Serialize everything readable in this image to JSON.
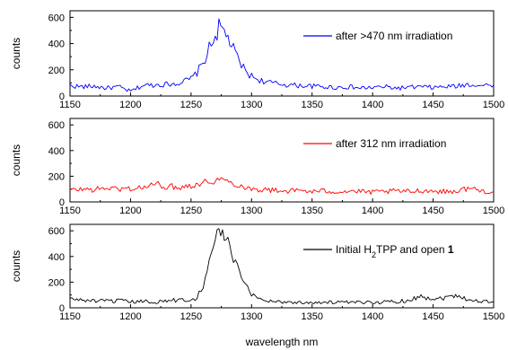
{
  "chart_data": [
    {
      "type": "line",
      "ylabel": "counts",
      "xlim": [
        1150,
        1500
      ],
      "ylim": [
        0,
        650
      ],
      "x_ticks": [
        1150,
        1200,
        1250,
        1300,
        1350,
        1400,
        1450,
        1500
      ],
      "y_ticks": [
        0,
        200,
        400,
        600
      ],
      "legend_placement": "top-right",
      "series": [
        {
          "name": "after >470 nm irradiation",
          "color": "#0000ff",
          "x": [
            1150,
            1160,
            1170,
            1180,
            1190,
            1200,
            1210,
            1220,
            1230,
            1240,
            1250,
            1255,
            1260,
            1265,
            1270,
            1273,
            1276,
            1279,
            1282,
            1285,
            1290,
            1295,
            1300,
            1305,
            1310,
            1320,
            1330,
            1340,
            1350,
            1360,
            1370,
            1380,
            1390,
            1400,
            1410,
            1420,
            1430,
            1440,
            1450,
            1460,
            1470,
            1480,
            1490,
            1500
          ],
          "y": [
            80,
            70,
            75,
            60,
            70,
            35,
            80,
            85,
            90,
            100,
            130,
            180,
            250,
            360,
            460,
            520,
            500,
            470,
            420,
            350,
            260,
            190,
            150,
            130,
            110,
            95,
            85,
            80,
            75,
            70,
            65,
            70,
            60,
            65,
            70,
            60,
            65,
            70,
            65,
            70,
            75,
            90,
            80,
            85
          ]
        }
      ]
    },
    {
      "type": "line",
      "ylabel": "counts",
      "xlim": [
        1150,
        1500
      ],
      "ylim": [
        0,
        650
      ],
      "x_ticks": [
        1150,
        1200,
        1250,
        1300,
        1350,
        1400,
        1450,
        1500
      ],
      "y_ticks": [
        0,
        200,
        400,
        600
      ],
      "legend_placement": "top-right",
      "series": [
        {
          "name": "after 312 nm irradiation",
          "color": "#ff0000",
          "x": [
            1150,
            1160,
            1170,
            1180,
            1190,
            1200,
            1210,
            1220,
            1230,
            1240,
            1250,
            1260,
            1270,
            1275,
            1280,
            1290,
            1300,
            1310,
            1320,
            1330,
            1340,
            1350,
            1360,
            1370,
            1380,
            1390,
            1400,
            1410,
            1420,
            1430,
            1440,
            1450,
            1460,
            1470,
            1480,
            1490,
            1500
          ],
          "y": [
            90,
            100,
            95,
            110,
            100,
            105,
            110,
            140,
            120,
            115,
            130,
            150,
            170,
            175,
            160,
            130,
            100,
            95,
            90,
            85,
            90,
            80,
            85,
            80,
            85,
            80,
            75,
            80,
            85,
            80,
            90,
            85,
            80,
            85,
            110,
            85,
            80
          ]
        }
      ]
    },
    {
      "type": "line",
      "ylabel": "counts",
      "xlabel": "wavelength nm",
      "xlim": [
        1150,
        1500
      ],
      "ylim": [
        0,
        650
      ],
      "x_ticks": [
        1150,
        1200,
        1250,
        1300,
        1350,
        1400,
        1450,
        1500
      ],
      "y_ticks": [
        0,
        200,
        400,
        600
      ],
      "legend_placement": "top-right",
      "series": [
        {
          "name": "Initial H2TPP and open 1",
          "color": "#000000",
          "x": [
            1150,
            1160,
            1170,
            1180,
            1190,
            1200,
            1210,
            1220,
            1230,
            1240,
            1250,
            1255,
            1260,
            1265,
            1270,
            1273,
            1276,
            1279,
            1282,
            1285,
            1290,
            1295,
            1300,
            1305,
            1310,
            1320,
            1330,
            1340,
            1350,
            1360,
            1370,
            1380,
            1390,
            1400,
            1410,
            1420,
            1430,
            1440,
            1450,
            1460,
            1470,
            1480,
            1490,
            1500
          ],
          "y": [
            70,
            60,
            55,
            50,
            55,
            45,
            50,
            45,
            55,
            60,
            65,
            80,
            180,
            350,
            520,
            600,
            590,
            540,
            470,
            380,
            260,
            170,
            110,
            80,
            60,
            50,
            45,
            40,
            45,
            40,
            45,
            40,
            40,
            45,
            45,
            50,
            60,
            90,
            70,
            80,
            100,
            60,
            50,
            45
          ]
        }
      ]
    }
  ]
}
